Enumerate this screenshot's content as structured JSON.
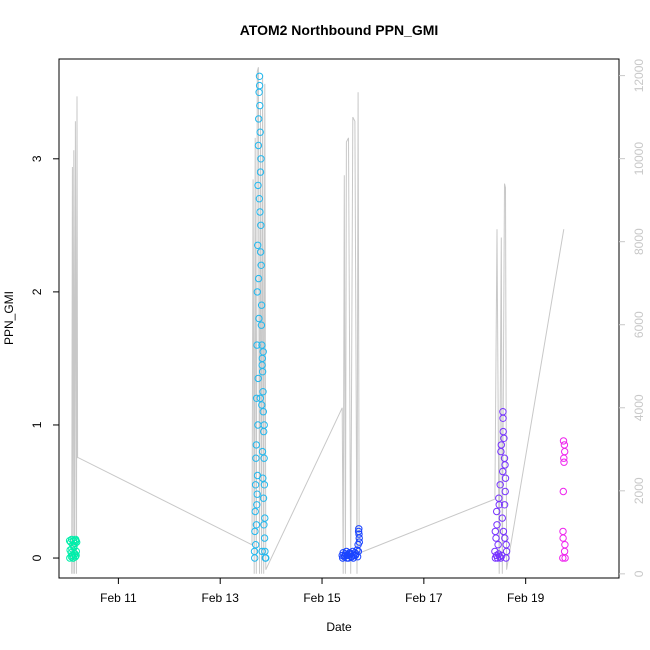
{
  "chart_data": {
    "type": "scatter",
    "title": "ATOM2 Northbound PPN_GMI",
    "xlabel": "Date",
    "ylabel": "PPN_GMI",
    "x_range": [
      "2011-02-09T20:00",
      "2011-02-20T20:00"
    ],
    "ylim": [
      -0.15,
      3.75
    ],
    "y2lim": [
      -100,
      12400
    ],
    "x_ticks": [
      {
        "label": "Feb 11",
        "date": "2011-02-11"
      },
      {
        "label": "Feb 13",
        "date": "2011-02-13"
      },
      {
        "label": "Feb 15",
        "date": "2011-02-15"
      },
      {
        "label": "Feb 17",
        "date": "2011-02-17"
      },
      {
        "label": "Feb 19",
        "date": "2011-02-19"
      }
    ],
    "y_ticks": [
      {
        "label": "0",
        "value": 0
      },
      {
        "label": "1",
        "value": 1
      },
      {
        "label": "2",
        "value": 2
      },
      {
        "label": "3",
        "value": 3
      }
    ],
    "y2_ticks": [
      {
        "label": "0",
        "value": 0
      },
      {
        "label": "2000",
        "value": 2000
      },
      {
        "label": "4000",
        "value": 4000
      },
      {
        "label": "6000",
        "value": 6000
      },
      {
        "label": "8000",
        "value": 8000
      },
      {
        "label": "10000",
        "value": 10000
      },
      {
        "label": "12000",
        "value": 12000
      }
    ],
    "grid": false,
    "line_color": "#c8c8c8",
    "secondary_series": {
      "axis": "right",
      "x": [
        "2011-02-10T02:00",
        "2011-02-10T02:20",
        "2011-02-10T02:40",
        "2011-02-10T03:00",
        "2011-02-10T03:20",
        "2011-02-10T03:45",
        "2011-02-10T04:15",
        "2011-02-10T04:30",
        "2011-02-10T04:45",
        "2011-02-10T05:00",
        "2011-02-13T15:00",
        "2011-02-13T15:30",
        "2011-02-13T16:00",
        "2011-02-13T16:30",
        "2011-02-13T17:00",
        "2011-02-13T17:30",
        "2011-02-13T18:00",
        "2011-02-13T18:30",
        "2011-02-13T19:00",
        "2011-02-13T19:30",
        "2011-02-13T20:00",
        "2011-02-13T20:30",
        "2011-02-13T21:00",
        "2011-02-13T21:30",
        "2011-02-15T09:30",
        "2011-02-15T10:00",
        "2011-02-15T10:30",
        "2011-02-15T11:00",
        "2011-02-15T11:30",
        "2011-02-15T12:30",
        "2011-02-15T13:30",
        "2011-02-15T14:30",
        "2011-02-15T15:30",
        "2011-02-15T16:30",
        "2011-02-15T17:00",
        "2011-02-15T17:30",
        "2011-02-18T09:30",
        "2011-02-18T10:30",
        "2011-02-18T11:30",
        "2011-02-18T12:30",
        "2011-02-18T13:00",
        "2011-02-18T14:00",
        "2011-02-18T14:30",
        "2011-02-18T15:00",
        "2011-02-19T18:00"
      ],
      "y": [
        0,
        9800,
        0,
        10200,
        0,
        10900,
        0,
        11500,
        2800,
        2800,
        700,
        9500,
        0,
        10500,
        0,
        12100,
        12200,
        0,
        11200,
        0,
        12000,
        0,
        11800,
        100,
        4000,
        0,
        9600,
        0,
        10400,
        10500,
        0,
        11000,
        10900,
        0,
        11600,
        500,
        1800,
        8300,
        0,
        8100,
        0,
        9400,
        9300,
        100,
        8300
      ]
    },
    "groups": [
      {
        "color": "#00eeaa",
        "x": [
          "2011-02-10T01:00",
          "2011-02-10T01:30",
          "2011-02-10T02:00",
          "2011-02-10T02:30",
          "2011-02-10T03:00",
          "2011-02-10T03:30",
          "2011-02-10T04:00",
          "2011-02-10T04:20",
          "2011-02-10T01:15",
          "2011-02-10T01:45",
          "2011-02-10T02:15",
          "2011-02-10T02:45",
          "2011-02-10T03:15",
          "2011-02-10T03:45",
          "2011-02-10T04:10",
          "2011-02-10T01:05",
          "2011-02-10T02:05",
          "2011-02-10T03:05",
          "2011-02-10T04:05",
          "2011-02-10T02:50",
          "2011-02-10T03:50",
          "2011-02-10T01:50",
          "2011-02-10T02:35",
          "2011-02-10T03:35"
        ],
        "y": [
          0.13,
          0.12,
          0.14,
          0.1,
          0.08,
          0.11,
          0.13,
          0.12,
          0.06,
          0.04,
          0.02,
          0.0,
          0.03,
          0.01,
          0.05,
          0.0,
          0.07,
          0.09,
          0.02,
          0.13,
          0.14,
          0.01,
          0.0,
          0.03
        ]
      },
      {
        "color": "#22b8ee",
        "x": [
          "2011-02-13T16:10",
          "2011-02-13T16:20",
          "2011-02-13T16:30",
          "2011-02-13T16:40",
          "2011-02-13T16:50",
          "2011-02-13T17:00",
          "2011-02-13T17:10",
          "2011-02-13T17:20",
          "2011-02-13T17:30",
          "2011-02-13T17:40",
          "2011-02-13T17:50",
          "2011-02-13T18:00",
          "2011-02-13T18:10",
          "2011-02-13T18:20",
          "2011-02-13T18:30",
          "2011-02-13T18:40",
          "2011-02-13T18:50",
          "2011-02-13T19:00",
          "2011-02-13T19:10",
          "2011-02-13T19:20",
          "2011-02-13T19:30",
          "2011-02-13T19:40",
          "2011-02-13T19:50",
          "2011-02-13T20:00",
          "2011-02-13T20:10",
          "2011-02-13T20:20",
          "2011-02-13T20:30",
          "2011-02-13T20:40",
          "2011-02-13T20:50",
          "2011-02-13T21:00",
          "2011-02-13T16:15",
          "2011-02-13T16:45",
          "2011-02-13T17:15",
          "2011-02-13T17:45",
          "2011-02-13T18:15",
          "2011-02-13T18:45",
          "2011-02-13T19:15",
          "2011-02-13T19:45",
          "2011-02-13T20:15",
          "2011-02-13T20:45",
          "2011-02-13T21:15",
          "2011-02-13T21:30",
          "2011-02-13T17:35",
          "2011-02-13T17:55",
          "2011-02-13T18:05",
          "2011-02-13T18:25",
          "2011-02-13T18:35",
          "2011-02-13T19:05",
          "2011-02-13T19:25",
          "2011-02-13T19:35",
          "2011-02-13T19:55",
          "2011-02-13T20:05",
          "2011-02-13T20:25",
          "2011-02-13T20:35",
          "2011-02-13T20:55",
          "2011-02-13T21:05",
          "2011-02-13T17:05",
          "2011-02-13T17:25",
          "2011-02-13T18:55",
          "2011-02-13T19:45"
        ],
        "y": [
          0.05,
          0.2,
          0.35,
          0.55,
          0.75,
          0.85,
          1.2,
          1.6,
          2.0,
          2.35,
          2.8,
          3.1,
          3.3,
          3.5,
          3.62,
          3.4,
          3.2,
          2.9,
          2.5,
          2.2,
          1.9,
          1.6,
          1.5,
          1.4,
          1.25,
          1.1,
          0.95,
          0.75,
          0.55,
          0.3,
          0.0,
          0.1,
          0.4,
          1.0,
          1.8,
          2.6,
          3.0,
          1.45,
          1.55,
          1.0,
          0.0,
          0.0,
          0.62,
          1.35,
          2.1,
          2.7,
          3.55,
          2.3,
          1.75,
          1.15,
          0.8,
          0.6,
          0.45,
          0.25,
          0.15,
          0.05,
          0.25,
          0.48,
          1.2,
          0.05
        ]
      },
      {
        "color": "#1a44ff",
        "x": [
          "2011-02-15T09:30",
          "2011-02-15T10:00",
          "2011-02-15T10:30",
          "2011-02-15T11:00",
          "2011-02-15T11:30",
          "2011-02-15T12:00",
          "2011-02-15T12:30",
          "2011-02-15T13:00",
          "2011-02-15T13:30",
          "2011-02-15T14:00",
          "2011-02-15T14:30",
          "2011-02-15T15:00",
          "2011-02-15T15:30",
          "2011-02-15T16:00",
          "2011-02-15T16:30",
          "2011-02-15T17:00",
          "2011-02-15T17:30",
          "2011-02-15T09:45",
          "2011-02-15T10:45",
          "2011-02-15T11:45",
          "2011-02-15T12:45",
          "2011-02-15T13:45",
          "2011-02-15T14:45",
          "2011-02-15T15:45",
          "2011-02-15T16:45",
          "2011-02-15T17:15",
          "2011-02-15T17:20",
          "2011-02-15T17:25",
          "2011-02-15T17:35",
          "2011-02-15T17:10"
        ],
        "y": [
          0.02,
          0.04,
          0.01,
          0.03,
          0.05,
          0.02,
          0.0,
          0.04,
          0.03,
          0.01,
          0.05,
          0.02,
          0.04,
          0.03,
          0.06,
          0.1,
          0.15,
          0.0,
          0.02,
          0.0,
          0.03,
          0.01,
          0.0,
          0.02,
          0.01,
          0.2,
          0.22,
          0.18,
          0.12,
          0.05
        ]
      },
      {
        "color": "#7733ff",
        "x": [
          "2011-02-18T09:30",
          "2011-02-18T10:00",
          "2011-02-18T10:30",
          "2011-02-18T11:00",
          "2011-02-18T11:30",
          "2011-02-18T12:00",
          "2011-02-18T12:30",
          "2011-02-18T13:00",
          "2011-02-18T13:30",
          "2011-02-18T14:00",
          "2011-02-18T14:30",
          "2011-02-18T15:00",
          "2011-02-18T09:45",
          "2011-02-18T10:15",
          "2011-02-18T10:45",
          "2011-02-18T11:15",
          "2011-02-18T11:45",
          "2011-02-18T12:15",
          "2011-02-18T12:45",
          "2011-02-18T13:15",
          "2011-02-18T13:45",
          "2011-02-18T14:15",
          "2011-02-18T14:45",
          "2011-02-18T09:40",
          "2011-02-18T10:20",
          "2011-02-18T11:20",
          "2011-02-18T12:20",
          "2011-02-18T13:20",
          "2011-02-18T14:20",
          "2011-02-18T14:50",
          "2011-02-18T13:10",
          "2011-02-18T13:25",
          "2011-02-18T14:05",
          "2011-02-18T14:10"
        ],
        "y": [
          0.05,
          0.15,
          0.25,
          0.1,
          0.4,
          0.55,
          0.85,
          0.3,
          0.2,
          0.75,
          0.6,
          0.05,
          0.0,
          0.02,
          0.0,
          0.03,
          0.01,
          0.0,
          0.02,
          1.1,
          0.9,
          0.7,
          0.0,
          0.2,
          0.35,
          0.45,
          0.8,
          1.05,
          0.5,
          0.1,
          0.65,
          0.95,
          0.4,
          0.15
        ]
      },
      {
        "color": "#ee22ee",
        "x": [
          "2011-02-19T17:30",
          "2011-02-19T17:45",
          "2011-02-19T18:00",
          "2011-02-19T18:15",
          "2011-02-19T18:30",
          "2011-02-19T17:35",
          "2011-02-19T17:50",
          "2011-02-19T18:05",
          "2011-02-19T18:20",
          "2011-02-19T18:35",
          "2011-02-19T17:40",
          "2011-02-19T18:25"
        ],
        "y": [
          0.0,
          0.5,
          0.75,
          0.85,
          0.1,
          0.2,
          0.88,
          0.72,
          0.05,
          0.0,
          0.15,
          0.8
        ]
      }
    ]
  }
}
